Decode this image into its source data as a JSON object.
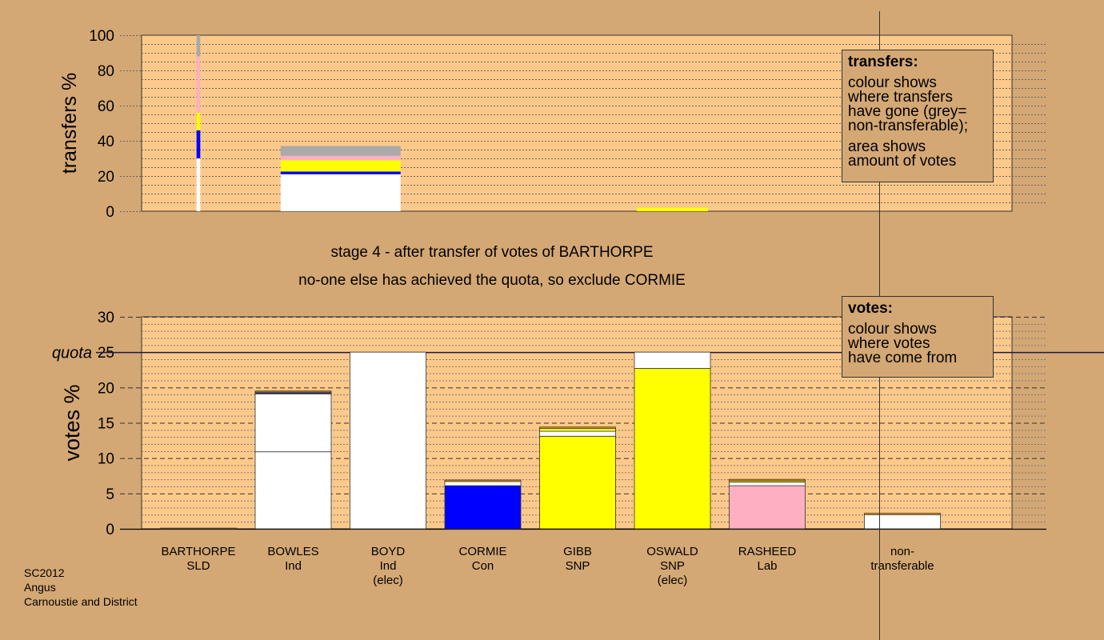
{
  "colors": {
    "background": "#d4a874",
    "plot_bg": "#fdc98a",
    "Ind": "#ffffff",
    "Con": "#0000ff",
    "SNP": "#ffff00",
    "Lab": "#ffb0c0",
    "SLD": "#ffa500",
    "non_transferable": "#aaaaaa",
    "quota_line": "#1a1a4a"
  },
  "stage_line_1": "stage 4 - after transfer of votes of BARTHORPE",
  "stage_line_2": "no-one else has achieved the quota, so exclude CORMIE",
  "transfers_box": {
    "heading": "transfers:",
    "line1": "colour shows",
    "line2": "where transfers",
    "line3": "have gone (grey=",
    "line4": "non-transferable);",
    "line5": "area shows",
    "line6": "amount of votes"
  },
  "votes_box": {
    "heading": "votes:",
    "line1": "colour shows",
    "line2": "where votes",
    "line3": "have come from"
  },
  "footer": {
    "code": "SC2012",
    "council": "Angus",
    "ward": "Carnoustie and District"
  },
  "chart_data": [
    {
      "type": "bar",
      "id": "transfers",
      "ylabel": "transfers %",
      "ylim": [
        0,
        100
      ],
      "yticks": [
        0,
        20,
        40,
        60,
        80,
        100
      ],
      "bars": [
        {
          "slot": 0,
          "width_votes_pct": 0.2,
          "segments": [
            {
              "party": "Ind",
              "from": 0,
              "to": 30
            },
            {
              "party": "Con",
              "from": 30,
              "to": 46
            },
            {
              "party": "SNP",
              "from": 46,
              "to": 56
            },
            {
              "party": "Lab",
              "from": 56,
              "to": 88
            },
            {
              "party": "non_transferable",
              "from": 88,
              "to": 100
            }
          ]
        },
        {
          "slot": 1.5,
          "width_votes_pct": 6.4,
          "segments": [
            {
              "party": "Ind",
              "from": 0,
              "to": 21
            },
            {
              "party": "Con",
              "from": 21,
              "to": 22.5
            },
            {
              "party": "SNP",
              "from": 22.5,
              "to": 29
            },
            {
              "party": "Lab",
              "from": 29,
              "to": 31.5
            },
            {
              "party": "non_transferable",
              "from": 31.5,
              "to": 37
            }
          ]
        },
        {
          "slot": 5,
          "width_votes_pct": 3.8,
          "segments": [
            {
              "party": "SNP",
              "from": 0,
              "to": 2
            }
          ]
        }
      ]
    },
    {
      "type": "bar",
      "id": "votes",
      "ylabel": "votes %",
      "ylim": [
        0,
        30
      ],
      "yticks": [
        0,
        5,
        10,
        15,
        20,
        25,
        30
      ],
      "quota": 25,
      "quota_label": "quota",
      "bars": [
        {
          "slot": 0,
          "name": "BARTHORPE",
          "party_label": "SLD",
          "note": "",
          "segments": [
            {
              "party": "SLD",
              "from": 0,
              "to": 0.1
            }
          ]
        },
        {
          "slot": 1,
          "name": "BOWLES",
          "party_label": "Ind",
          "note": "",
          "segments": [
            {
              "party": "Ind",
              "from": 0,
              "to": 10.9
            },
            {
              "party": "Ind",
              "from": 10.9,
              "to": 19.1
            },
            {
              "party": "Con",
              "from": 19.1,
              "to": 19.25
            },
            {
              "party": "SNP",
              "from": 19.25,
              "to": 19.35
            },
            {
              "party": "SLD",
              "from": 19.35,
              "to": 19.5
            }
          ]
        },
        {
          "slot": 2,
          "name": "BOYD",
          "party_label": "Ind",
          "note": "(elec)",
          "segments": [
            {
              "party": "Ind",
              "from": 0,
              "to": 25
            }
          ]
        },
        {
          "slot": 3,
          "name": "CORMIE",
          "party_label": "Con",
          "note": "",
          "segments": [
            {
              "party": "Con",
              "from": 0,
              "to": 6.1
            },
            {
              "party": "Ind",
              "from": 6.1,
              "to": 6.7
            },
            {
              "party": "SLD",
              "from": 6.7,
              "to": 6.9
            }
          ]
        },
        {
          "slot": 4,
          "name": "GIBB",
          "party_label": "SNP",
          "note": "",
          "segments": [
            {
              "party": "SNP",
              "from": 0,
              "to": 13.1
            },
            {
              "party": "Ind",
              "from": 13.1,
              "to": 13.8
            },
            {
              "party": "SNP",
              "from": 13.8,
              "to": 14.2
            },
            {
              "party": "SLD",
              "from": 14.2,
              "to": 14.4
            }
          ]
        },
        {
          "slot": 5,
          "name": "OSWALD",
          "party_label": "SNP",
          "note": "(elec)",
          "segments": [
            {
              "party": "SNP",
              "from": 0,
              "to": 22.7
            },
            {
              "party": "Ind",
              "from": 22.7,
              "to": 25
            }
          ]
        },
        {
          "slot": 6,
          "name": "RASHEED",
          "party_label": "Lab",
          "note": "",
          "segments": [
            {
              "party": "Lab",
              "from": 0,
              "to": 6.1
            },
            {
              "party": "Ind",
              "from": 6.1,
              "to": 6.6
            },
            {
              "party": "SNP",
              "from": 6.6,
              "to": 6.8
            },
            {
              "party": "SLD",
              "from": 6.8,
              "to": 7.0
            }
          ]
        },
        {
          "slot": 8,
          "name": "non-",
          "party_label": "transferable",
          "note": "",
          "segments": [
            {
              "party": "Ind",
              "from": 0,
              "to": 2.0
            },
            {
              "party": "SLD",
              "from": 2.0,
              "to": 2.2
            }
          ]
        }
      ]
    }
  ]
}
